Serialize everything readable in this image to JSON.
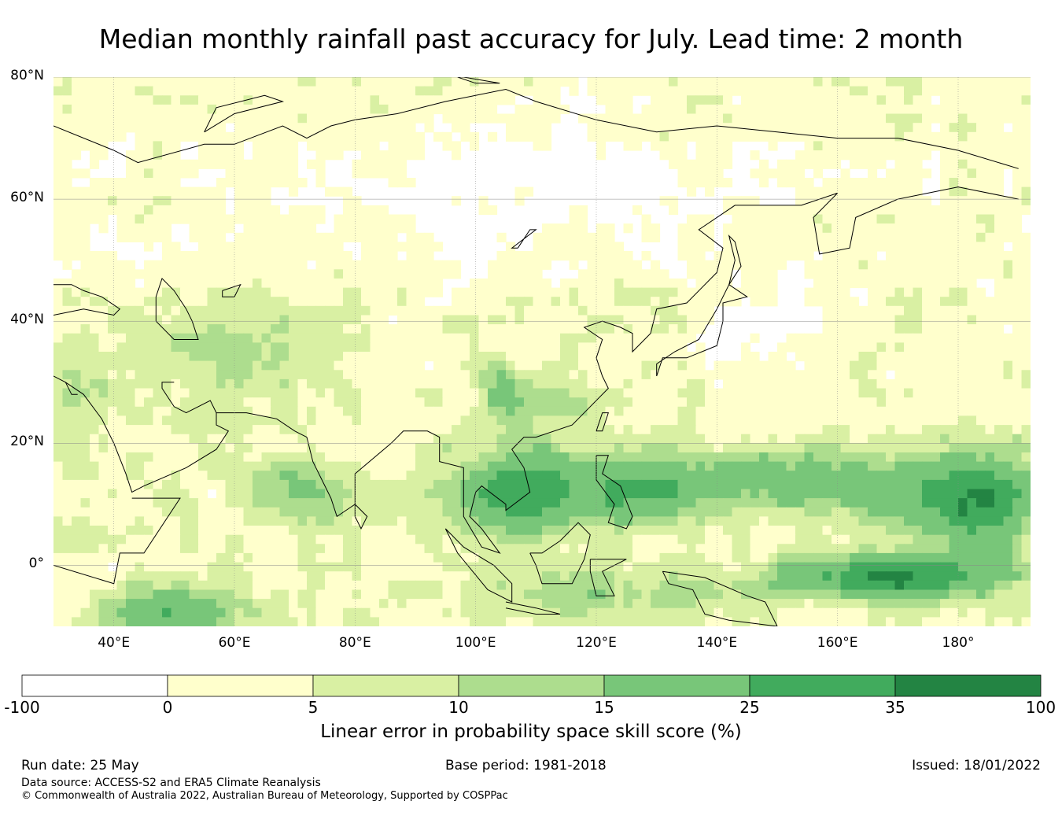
{
  "title": "Median monthly rainfall past accuracy for July. Lead time: 2 month",
  "map": {
    "lon_range": [
      30,
      192
    ],
    "lat_range": [
      -10,
      80
    ],
    "grid": true,
    "lat_ticks": [
      {
        "value": 80,
        "label": "80°N"
      },
      {
        "value": 60,
        "label": "60°N"
      },
      {
        "value": 40,
        "label": "40°N"
      },
      {
        "value": 20,
        "label": "20°N"
      },
      {
        "value": 0,
        "label": "0°"
      }
    ],
    "lon_ticks": [
      {
        "value": 40,
        "label": "40°E"
      },
      {
        "value": 60,
        "label": "60°E"
      },
      {
        "value": 80,
        "label": "80°E"
      },
      {
        "value": 100,
        "label": "100°E"
      },
      {
        "value": 120,
        "label": "120°E"
      },
      {
        "value": 140,
        "label": "140°E"
      },
      {
        "value": 160,
        "label": "160°E"
      },
      {
        "value": 180,
        "label": "180°"
      }
    ]
  },
  "colorbar": {
    "title": "Linear error in probability space skill score (%)",
    "bounds": [
      "-100",
      "0",
      "5",
      "10",
      "15",
      "25",
      "35",
      "100"
    ],
    "colors": [
      "#ffffff",
      "#ffffcc",
      "#d9f0a3",
      "#addd8e",
      "#78c679",
      "#41ab5d",
      "#238443"
    ]
  },
  "footer": {
    "run_date": "Run date: 25 May",
    "base_period": "Base period: 1981-2018",
    "issued": "Issued: 18/01/2022",
    "data_source": "Data source: ACCESS-S2 and ERA5 Climate Reanalysis",
    "copyright": "© Commonwealth of Australia 2022, Australian Bureau of Meteorology, Supported by COSPPac"
  }
}
